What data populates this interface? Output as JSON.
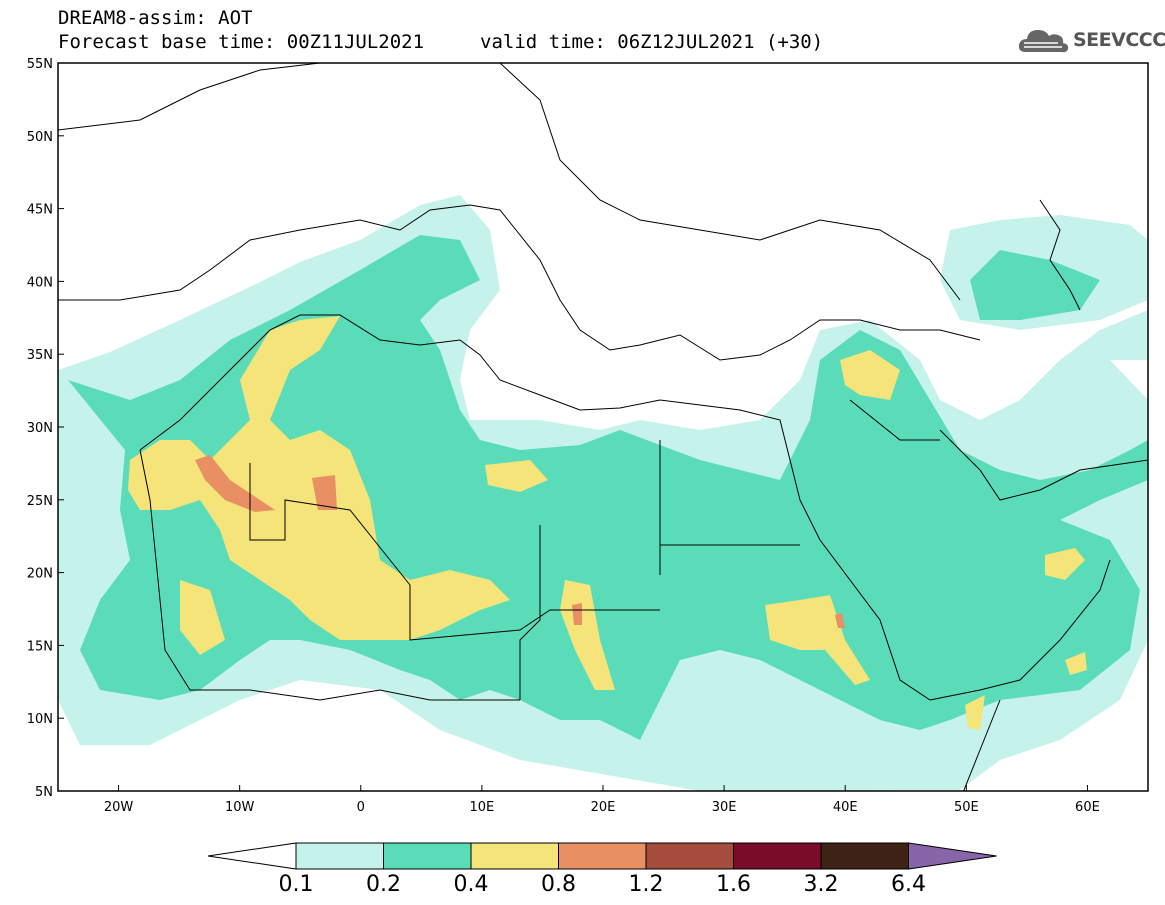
{
  "header": {
    "product": "DREAM8-assim: AOT",
    "base_time": "Forecast base time: 00Z11JUL2021",
    "valid_time": "valid time: 06Z12JUL2021 (+30)"
  },
  "logo": {
    "text": "SEEVCCC",
    "icon": "cloud-icon"
  },
  "map": {
    "lon_range": [
      -25,
      65
    ],
    "lat_range": [
      5,
      55
    ],
    "lat_labels": [
      "55N",
      "50N",
      "45N",
      "40N",
      "35N",
      "30N",
      "25N",
      "20N",
      "15N",
      "10N",
      "5N"
    ],
    "lon_labels": [
      "20W",
      "10W",
      "0",
      "10E",
      "20E",
      "30E",
      "40E",
      "50E",
      "60E"
    ]
  },
  "colorbar": {
    "labels": [
      "0.1",
      "0.2",
      "0.4",
      "0.8",
      "1.2",
      "1.6",
      "3.2",
      "6.4"
    ],
    "colors": [
      "#ffffff",
      "#c6f2ec",
      "#5adcb9",
      "#f5e47a",
      "#e88f63",
      "#a54c3d",
      "#7a0c2a",
      "#3d2215",
      "#8864a8"
    ]
  }
}
